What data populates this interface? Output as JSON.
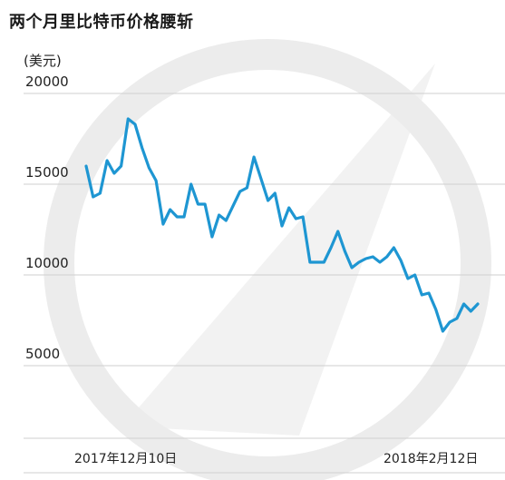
{
  "title": "两个月里比特币价格腰斩",
  "unit": "(美元)",
  "colors": {
    "line": "#1e96d2",
    "grid": "#cfcfcf",
    "watermark": "#ececec"
  },
  "chart_data": {
    "type": "line",
    "title": "两个月里比特币价格腰斩",
    "ylabel": "(美元)",
    "ylim": [
      2000,
      21000
    ],
    "yticks": [
      20000,
      15000,
      10000,
      5000
    ],
    "ytick_labels": [
      "20000",
      "15000",
      "10000",
      "5000"
    ],
    "xtick_labels": [
      "2017年12月10日",
      "2018年2月12日"
    ],
    "series": [
      {
        "values": [
          16000,
          14300,
          14500,
          16300,
          15600,
          16000,
          18600,
          18300,
          17000,
          15900,
          15200,
          12800,
          13600,
          13200,
          13200,
          15000,
          13900,
          13900,
          12100,
          13300,
          13000,
          13800,
          14600,
          14800,
          16500,
          15300,
          14100,
          14500,
          12700,
          13700,
          13100,
          13200,
          10700,
          10700,
          10700,
          11500,
          12400,
          11300,
          10400,
          10700,
          10900,
          11000,
          10700,
          11000,
          11500,
          10800,
          9800,
          10000,
          8900,
          9000,
          8100,
          6900,
          7400,
          7600,
          8400,
          8000,
          8400
        ]
      }
    ]
  }
}
